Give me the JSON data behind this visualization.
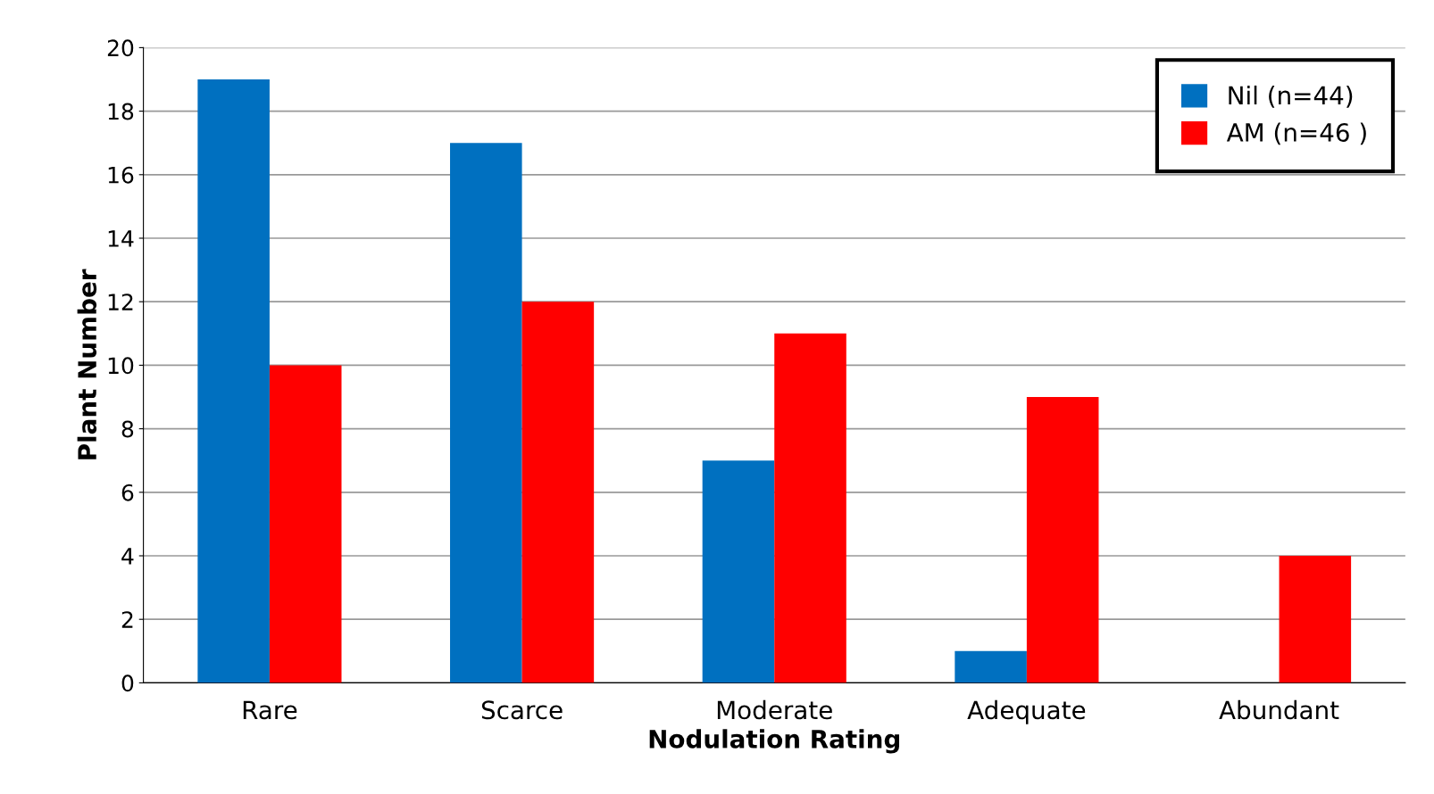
{
  "chart_data": {
    "type": "bar",
    "xlabel": "Nodulation Rating",
    "ylabel": "Plant Number",
    "categories": [
      "Rare",
      "Scarce",
      "Moderate",
      "Adequate",
      "Abundant"
    ],
    "series": [
      {
        "name": "Nil (n=44)",
        "color": "#0070c0",
        "values": [
          19,
          17,
          7,
          1,
          0
        ]
      },
      {
        "name": "AM (n=46 )",
        "color": "#ff0000",
        "values": [
          10,
          12,
          11,
          9,
          4
        ]
      }
    ],
    "ylim": [
      0,
      20
    ],
    "yticks": [
      0,
      2,
      4,
      6,
      8,
      10,
      12,
      14,
      16,
      18,
      20
    ],
    "grid": "y",
    "legend": "top right"
  }
}
